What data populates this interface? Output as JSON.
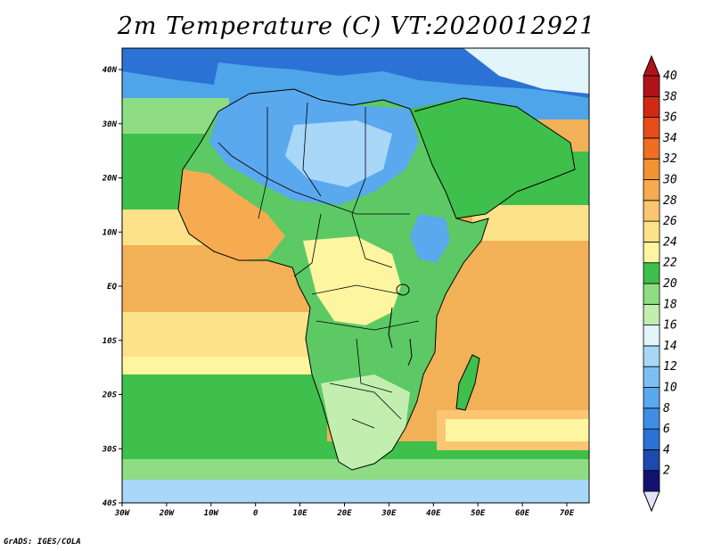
{
  "title": "2m Temperature (C) VT:2020012921",
  "credit": "GrADS: IGES/COLA",
  "map": {
    "lon_range": [
      -30,
      75
    ],
    "lat_range": [
      -40,
      45
    ],
    "lat_ticks": [
      "40N",
      "30N",
      "20N",
      "10N",
      "EQ",
      "10S",
      "20S",
      "30S",
      "40S"
    ],
    "lon_ticks": [
      "30W",
      "20W",
      "10W",
      "0",
      "10E",
      "20E",
      "30E",
      "40E",
      "50E",
      "60E",
      "70E"
    ],
    "ocean_color": "#f2b057",
    "land_color": "#5cc965"
  },
  "colorbar": {
    "labels": [
      "2",
      "4",
      "6",
      "8",
      "10",
      "12",
      "14",
      "16",
      "18",
      "20",
      "22",
      "24",
      "26",
      "28",
      "30",
      "32",
      "34",
      "36",
      "38",
      "40"
    ],
    "colors": [
      "#12136e",
      "#1e49b0",
      "#2c72d4",
      "#3f8ee6",
      "#5aa8ee",
      "#7ebff3",
      "#a9d7f8",
      "#e1f5fa",
      "#c2efb0",
      "#8edd85",
      "#3fbf4b",
      "#fdf5a0",
      "#fde28a",
      "#fbc671",
      "#f6ab50",
      "#f39231",
      "#ef6e22",
      "#e54c19",
      "#d02a14",
      "#b2131a"
    ]
  }
}
